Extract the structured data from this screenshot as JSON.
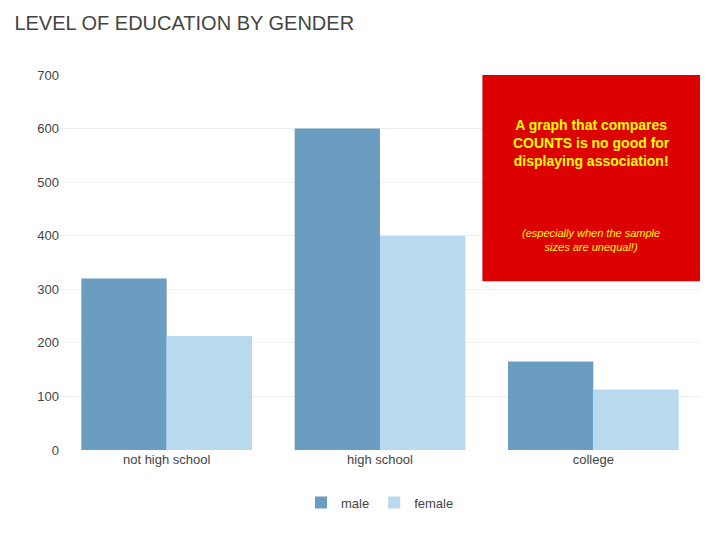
{
  "chart_data": {
    "type": "bar",
    "title": "LEVEL OF EDUCATION BY GENDER",
    "categories": [
      "not high school",
      "high school",
      "college"
    ],
    "series": [
      {
        "name": "male",
        "color": "#6b9dc0",
        "values": [
          320,
          600,
          165
        ]
      },
      {
        "name": "female",
        "color": "#b8d9ee",
        "values": [
          213,
          400,
          113
        ]
      }
    ],
    "ylim": [
      0,
      700
    ],
    "yticks": [
      0,
      100,
      200,
      300,
      400,
      500,
      600,
      700
    ],
    "grid": true,
    "legend": "bottom",
    "annotations": [
      "A graph that compares\nCOUNTS is no good for\ndisplaying association!",
      "(especially when the sample\nsizes are unequal!)"
    ]
  }
}
